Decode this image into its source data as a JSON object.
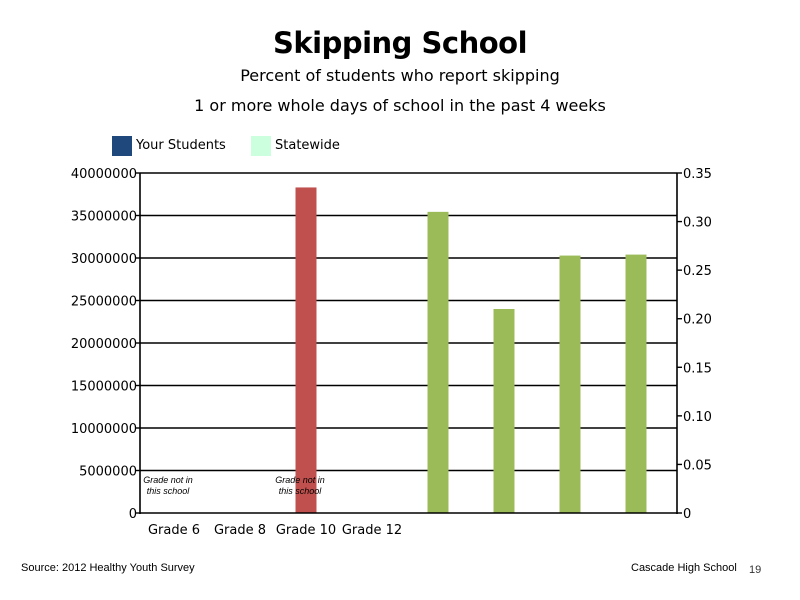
{
  "title": "Skipping School",
  "subtitle_line1": "Percent of students who report skipping",
  "subtitle_line2": "1 or more whole days of school in the past 4 weeks",
  "legend": [
    {
      "label": "Your Students",
      "color": "#1f497d"
    },
    {
      "label": "Statewide",
      "color": "#ccffdd"
    }
  ],
  "footer": {
    "source": "Source: 2012 Healthy Youth Survey",
    "school": "Cascade High School",
    "page": "19"
  },
  "chart_data": {
    "type": "bar",
    "categories": [
      "Grade 6",
      "Grade 8",
      "Grade 10",
      "Grade 12"
    ],
    "grid": true,
    "legend_position": "top-left",
    "left_axis": {
      "ylim": [
        0,
        40000000
      ],
      "ticks": [
        {
          "value": 0,
          "label": "0"
        },
        {
          "value": 5000000,
          "label": "5000000"
        },
        {
          "value": 10000000,
          "label": "10000000"
        },
        {
          "value": 15000000,
          "label": "15000000"
        },
        {
          "value": 20000000,
          "label": "20000000"
        },
        {
          "value": 25000000,
          "label": "25000000"
        },
        {
          "value": 30000000,
          "label": "30000000"
        },
        {
          "value": 35000000,
          "label": "35000000"
        },
        {
          "value": 40000000,
          "label": "40000000"
        }
      ]
    },
    "right_axis": {
      "ylim": [
        0,
        0.35
      ],
      "ticks": [
        {
          "value": 0,
          "label": "0"
        },
        {
          "value": 0.05,
          "label": "0.05"
        },
        {
          "value": 0.1,
          "label": "0.10"
        },
        {
          "value": 0.15,
          "label": "0.15"
        },
        {
          "value": 0.2,
          "label": "0.20"
        },
        {
          "value": 0.25,
          "label": "0.25"
        },
        {
          "value": 0.3,
          "label": "0.30"
        },
        {
          "value": 0.35,
          "label": "0.35"
        }
      ]
    },
    "left_axis_bars": [
      {
        "slot": 2,
        "value": 38300000,
        "color": "#c0504d"
      }
    ],
    "right_axis_bars": [
      {
        "slot": 4,
        "value": 0.31,
        "color": "#9bbb59"
      },
      {
        "slot": 5,
        "value": 0.21,
        "color": "#9bbb59"
      },
      {
        "slot": 6,
        "value": 0.265,
        "color": "#9bbb59"
      },
      {
        "slot": 7,
        "value": 0.266,
        "color": "#9bbb59"
      }
    ],
    "annotations": [
      {
        "slot": 0,
        "line1": "Grade not in",
        "line2": "this school"
      },
      {
        "slot": 2,
        "line1": "Grade not in",
        "line2": "this school"
      }
    ]
  }
}
